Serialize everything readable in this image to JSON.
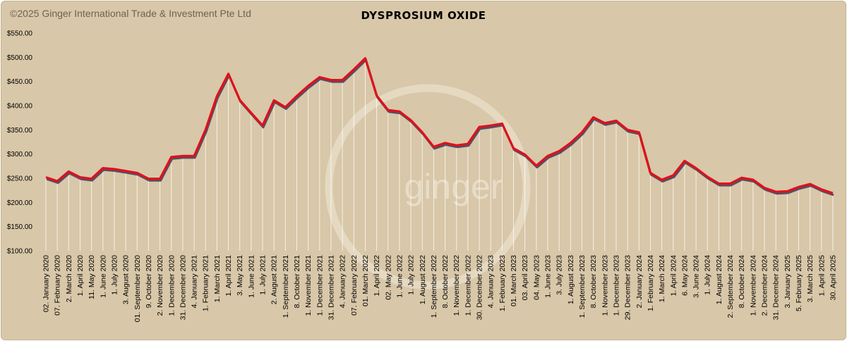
{
  "copyright": "©2025 Ginger International Trade & Investment Pte Ltd",
  "watermark": "ginger",
  "colors": {
    "background": "#d8c7a8",
    "line": "#e0101a",
    "line_shadow": "#3c3a5a",
    "drop_lines": "#ffffff"
  },
  "chart_data": {
    "type": "line",
    "title": "DYSPROSIUM OXIDE",
    "xlabel": "",
    "ylabel": "",
    "ylim": [
      100,
      550
    ],
    "y_ticks": [
      "$100.00",
      "$150.00",
      "$200.00",
      "$250.00",
      "$300.00",
      "$350.00",
      "$400.00",
      "$450.00",
      "$500.00",
      "$550.00"
    ],
    "grid": false,
    "legend": "none",
    "x_labels": [
      "02. January 2020",
      "07. February 2020",
      "2. March 2020",
      "1. April 2020",
      "11. May 2020",
      "1. June 2020",
      "1. July 2020",
      "3. August 2020",
      "01. September 2020",
      "9. October 2020",
      "2. November 2020",
      "1. December 2020",
      "31. December 2020",
      "4. January 2021",
      "1. February 2021",
      "1. March 2021",
      "1. April 2021",
      "3. May 2021",
      "1. June 2021",
      "1. July 2021",
      "2. August 2021",
      "1. September 2021",
      "8. October 2021",
      "1. November 2021",
      "1. December 2021",
      "31. December 2021",
      "4. January 2022",
      "07. February 2022",
      "01. March 2022",
      "1. April 2022",
      "02. May 2022",
      "1. June 2022",
      "1. July 2022",
      "1. August 2022",
      "1. September 2022",
      "8. October 2022",
      "1. November 2022",
      "1. December 2022",
      "30. December 2022",
      "4. January 2023",
      "1. February 2023",
      "01. March 2023",
      "03. April 2023",
      "04. May 2023",
      "1. June 2023",
      "3. July 2023",
      "1. August 2023",
      "1. September 2023",
      "8. October 2023",
      "1. November 2023",
      "1. December 2023",
      "29. December 2023",
      "2. January 2024",
      "1. February 2024",
      "1. March 2024",
      "1. April 2024",
      "6. May 2024",
      "3. June 2024",
      "1. July 2024",
      "1. August 2024",
      "2. September 2024",
      "8. October 2024",
      "1. November 2024",
      "2. December 2024",
      "31. December 2024",
      "3. January 2025",
      "5. February 2025",
      "3. March 2025",
      "1. April 2025",
      "30. April 2025"
    ],
    "values": [
      252,
      244,
      264,
      252,
      249,
      271,
      269,
      265,
      261,
      249,
      249,
      294,
      296,
      296,
      350,
      420,
      466,
      412,
      385,
      359,
      411,
      397,
      420,
      441,
      459,
      453,
      453,
      475,
      498,
      421,
      391,
      388,
      370,
      345,
      315,
      323,
      318,
      321,
      356,
      359,
      363,
      312,
      299,
      276,
      296,
      306,
      323,
      345,
      376,
      364,
      369,
      350,
      345,
      261,
      247,
      256,
      286,
      271,
      253,
      239,
      239,
      251,
      247,
      230,
      222,
      223,
      232,
      238,
      227,
      219
    ]
  }
}
